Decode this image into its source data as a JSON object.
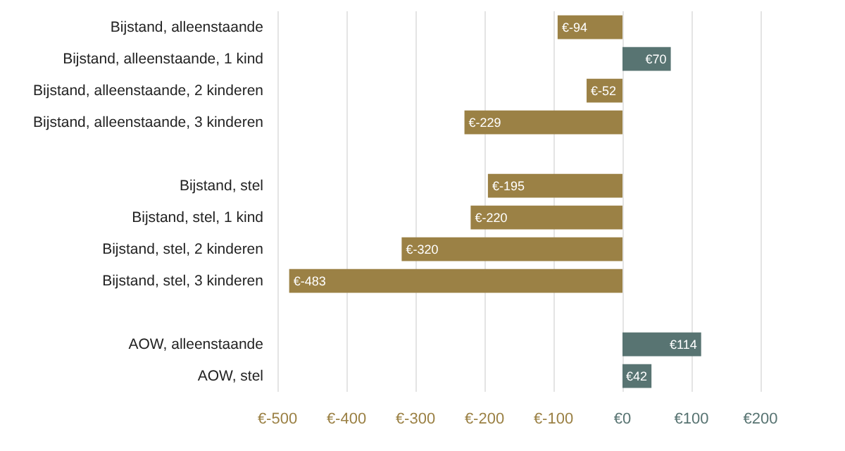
{
  "chart_data": {
    "type": "bar",
    "orientation": "horizontal",
    "categories": [
      "Bijstand, alleenstaande",
      "Bijstand, alleenstaande, 1 kind",
      "Bijstand, alleenstaande, 2 kinderen",
      "Bijstand, alleenstaande, 3 kinderen",
      null,
      "Bijstand, stel",
      "Bijstand, stel, 1 kind",
      "Bijstand, stel, 2 kinderen",
      "Bijstand, stel, 3 kinderen",
      null,
      "AOW, alleenstaande",
      "AOW, stel"
    ],
    "values": [
      -94,
      70,
      -52,
      -229,
      null,
      -195,
      -220,
      -320,
      -483,
      null,
      114,
      42
    ],
    "value_labels": [
      "€-94",
      "€70",
      "€-52",
      "€-229",
      null,
      "€-195",
      "€-220",
      "€-320",
      "€-483",
      null,
      "€114",
      "€42"
    ],
    "colors": [
      "#9b8145",
      "#587472",
      "#9b8145",
      "#9b8145",
      null,
      "#9b8145",
      "#9b8145",
      "#9b8145",
      "#9b8145",
      null,
      "#587472",
      "#587472"
    ],
    "xlim": [
      -500,
      200
    ],
    "xticks": [
      {
        "value": -500,
        "label": "€-500"
      },
      {
        "value": -400,
        "label": "€-400"
      },
      {
        "value": -300,
        "label": "€-300"
      },
      {
        "value": -200,
        "label": "€-200"
      },
      {
        "value": -100,
        "label": "€-100"
      },
      {
        "value": 0,
        "label": "€0"
      },
      {
        "value": 100,
        "label": "€100"
      },
      {
        "value": 200,
        "label": "€200"
      }
    ],
    "grid": "x"
  }
}
